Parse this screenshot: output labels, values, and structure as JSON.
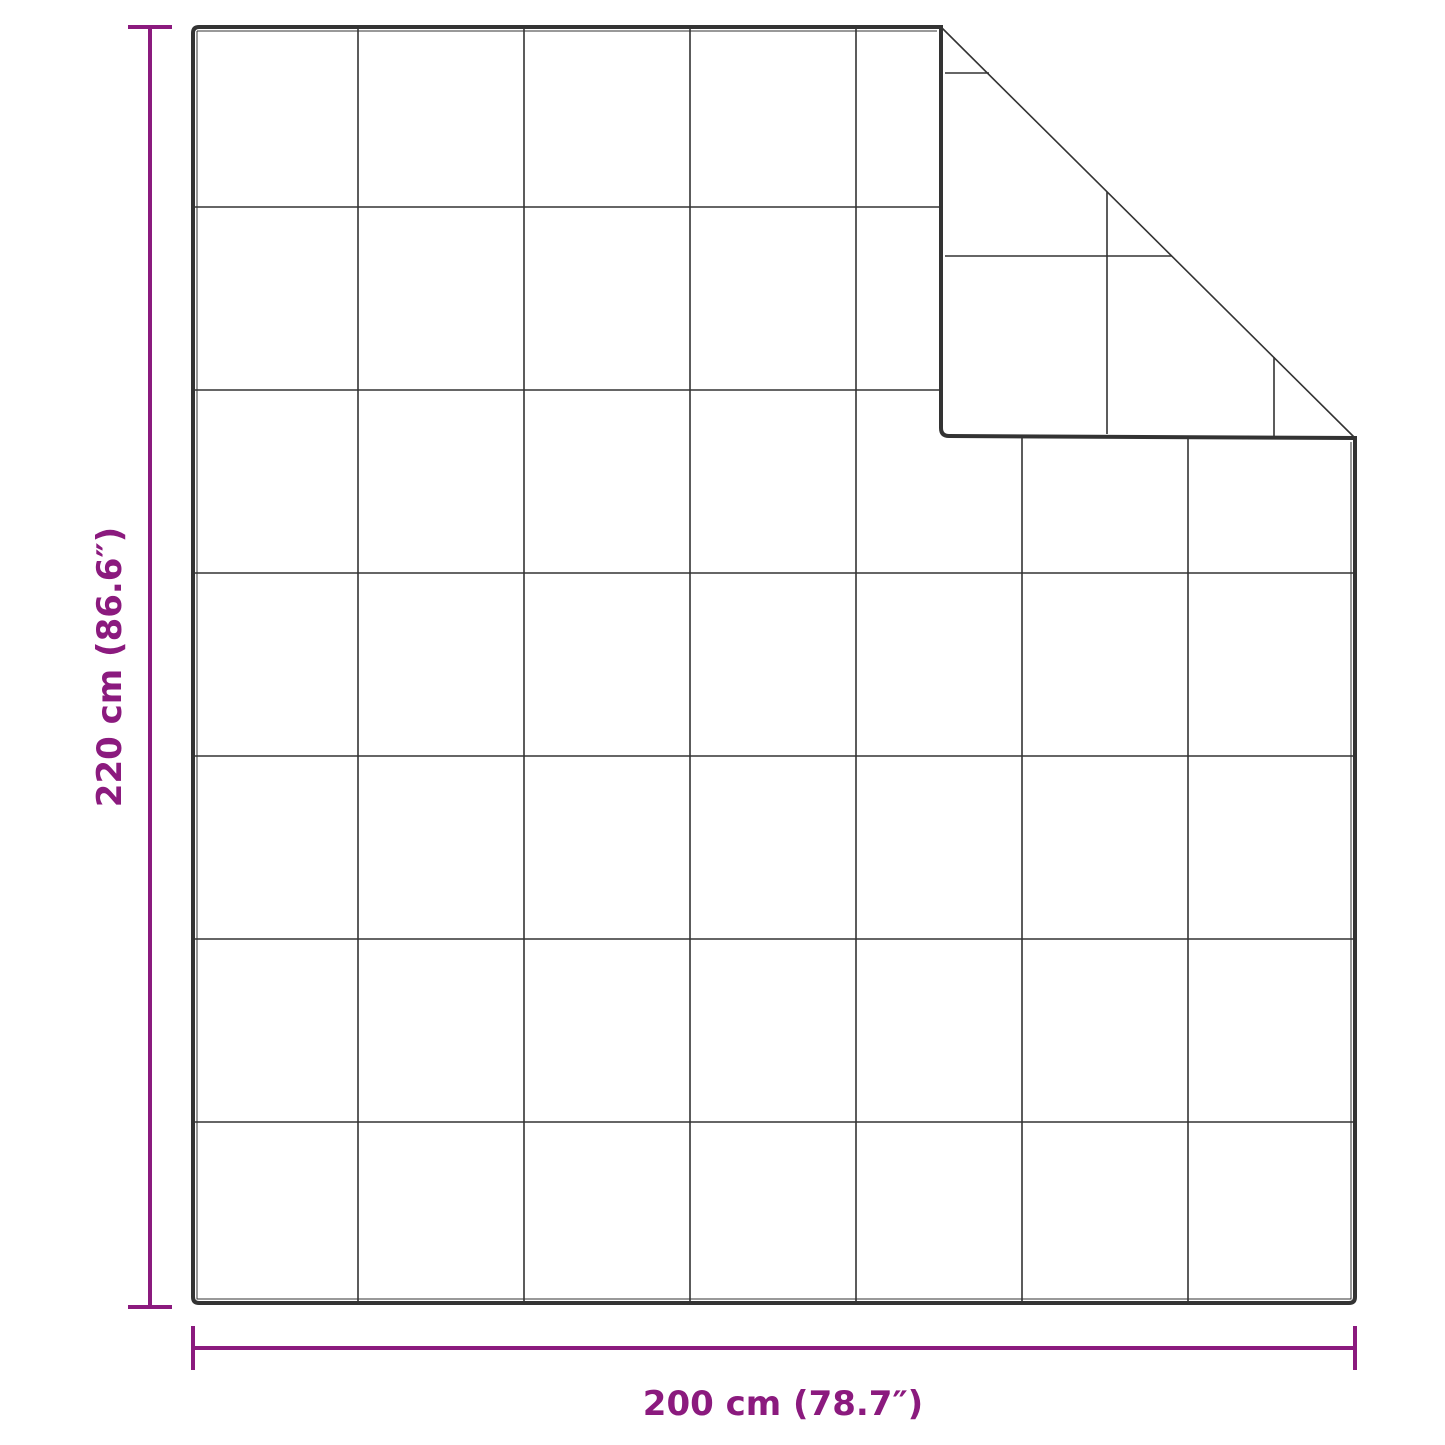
{
  "dimensions": {
    "height_label": "220 cm (86.6″)",
    "width_label": "200 cm (78.7″)"
  },
  "colors": {
    "dimension": "#8b1a7e",
    "outline": "#333333",
    "background": "#ffffff"
  },
  "product": {
    "grid_columns": 7,
    "grid_rows": 7,
    "folded_corner": "top-right"
  }
}
